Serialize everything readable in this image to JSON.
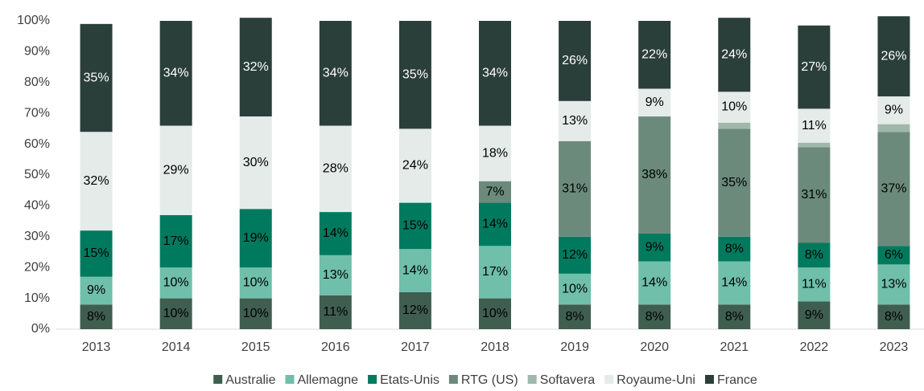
{
  "chart_data": {
    "type": "stacked_bar_100",
    "categories": [
      "2013",
      "2014",
      "2015",
      "2016",
      "2017",
      "2018",
      "2019",
      "2020",
      "2021",
      "2022",
      "2023"
    ],
    "series": [
      {
        "name": "Australie",
        "color": "#3f5e50",
        "values": [
          8,
          10,
          10,
          11,
          12,
          10,
          8,
          8,
          8,
          9,
          8
        ]
      },
      {
        "name": "Allemagne",
        "color": "#6fbfaa",
        "values": [
          9,
          10,
          10,
          13,
          14,
          17,
          10,
          14,
          14,
          11,
          13
        ]
      },
      {
        "name": "Etats-Unis",
        "color": "#007a5e",
        "values": [
          15,
          17,
          19,
          14,
          15,
          14,
          12,
          9,
          8,
          8,
          6
        ]
      },
      {
        "name": "RTG (US)",
        "color": "#6b8a7b",
        "values": [
          0,
          0,
          0,
          0,
          0,
          7,
          31,
          38,
          35,
          31,
          37
        ]
      },
      {
        "name": "Softavera",
        "color": "#9fb8ab",
        "values": [
          0,
          0,
          0,
          0,
          0,
          0,
          0,
          0,
          2,
          1.5,
          2.5
        ]
      },
      {
        "name": "Royaume-Uni",
        "color": "#e4ebe8",
        "values": [
          32,
          29,
          30,
          28,
          24,
          18,
          13,
          9,
          10,
          11,
          9
        ]
      },
      {
        "name": "France",
        "color": "#2b3f3a",
        "values": [
          35,
          34,
          32,
          34,
          35,
          34,
          26,
          22,
          24,
          27,
          26
        ]
      }
    ],
    "ylim": [
      0,
      100
    ],
    "yticks": [
      {
        "value": 0,
        "label": "0%"
      },
      {
        "value": 10,
        "label": "10%"
      },
      {
        "value": 20,
        "label": "20%"
      },
      {
        "value": 30,
        "label": "30%"
      },
      {
        "value": 40,
        "label": "40%"
      },
      {
        "value": 50,
        "label": "50%"
      },
      {
        "value": 60,
        "label": "60%"
      },
      {
        "value": 70,
        "label": "70%"
      },
      {
        "value": 80,
        "label": "80%"
      },
      {
        "value": 90,
        "label": "90%"
      },
      {
        "value": 100,
        "label": "100%"
      }
    ],
    "value_labels": [
      [
        "8%",
        "10%",
        "10%",
        "11%",
        "12%",
        "10%",
        "8%",
        "8%",
        "8%",
        "9%",
        "8%"
      ],
      [
        "9%",
        "10%",
        "10%",
        "13%",
        "14%",
        "17%",
        "10%",
        "14%",
        "14%",
        "11%",
        "13%"
      ],
      [
        "15%",
        "17%",
        "19%",
        "14%",
        "15%",
        "14%",
        "12%",
        "9%",
        "8%",
        "8%",
        "6%"
      ],
      [
        null,
        null,
        null,
        null,
        null,
        "7%",
        "31%",
        "38%",
        "35%",
        "31%",
        "37%"
      ],
      [
        null,
        null,
        null,
        null,
        null,
        null,
        null,
        null,
        null,
        null,
        null
      ],
      [
        "32%",
        "29%",
        "30%",
        "28%",
        "24%",
        "18%",
        "13%",
        "9%",
        "10%",
        "11%",
        "9%"
      ],
      [
        "35%",
        "34%",
        "32%",
        "34%",
        "35%",
        "34%",
        "26%",
        "22%",
        "24%",
        "27%",
        "26%"
      ]
    ],
    "legend": "bottom"
  }
}
